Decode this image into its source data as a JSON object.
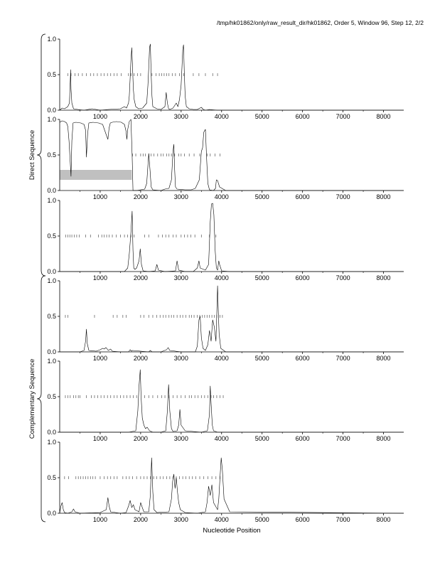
{
  "header": {
    "text": "/tmp/hk01862/only/raw_result_dir/hk01862, Order 5, Window 96, Step 12, 2/2"
  },
  "groups": {
    "direct": "Direct Sequence",
    "complementary": "Complementary Sequence"
  },
  "colors": {
    "line": "#000000",
    "marker": "#555555",
    "highlight": "#c0c0c0",
    "axis": "#000000"
  },
  "chart_data": [
    {
      "type": "line",
      "panel": 1,
      "group": "Direct Sequence",
      "xlim": [
        0,
        8500
      ],
      "ylim": [
        0,
        1
      ],
      "xticks": [
        "1000",
        "2000",
        "3000",
        "4000",
        "5000",
        "6000",
        "7000",
        "8000"
      ],
      "yticks": [
        "0.0",
        "0.5",
        "1.0"
      ],
      "x": [
        0,
        60,
        120,
        200,
        240,
        260,
        270,
        280,
        300,
        340,
        450,
        600,
        800,
        1000,
        1200,
        1500,
        1600,
        1650,
        1700,
        1720,
        1740,
        1760,
        1780,
        1800,
        1820,
        1840,
        1880,
        1950,
        2050,
        2150,
        2180,
        2200,
        2220,
        2240,
        2260,
        2280,
        2300,
        2400,
        2500,
        2600,
        2630,
        2660,
        2690,
        2720,
        2800,
        2880,
        2920,
        2960,
        3000,
        3020,
        3040,
        3060,
        3080,
        3100,
        3130,
        3200,
        3300,
        3400,
        3500,
        3550,
        3600,
        3700,
        3900,
        4200,
        8500
      ],
      "y": [
        0.0,
        0.03,
        0.02,
        0.05,
        0.1,
        0.4,
        0.57,
        0.3,
        0.1,
        0.02,
        0.01,
        0.0,
        0.02,
        0.0,
        0.01,
        0.02,
        0.05,
        0.03,
        0.1,
        0.2,
        0.45,
        0.7,
        0.88,
        0.6,
        0.3,
        0.15,
        0.05,
        0.02,
        0.03,
        0.1,
        0.35,
        0.6,
        0.88,
        0.93,
        0.5,
        0.2,
        0.05,
        0.02,
        0.01,
        0.05,
        0.25,
        0.1,
        0.02,
        0.01,
        0.03,
        0.1,
        0.05,
        0.15,
        0.35,
        0.6,
        0.85,
        0.92,
        0.5,
        0.2,
        0.05,
        0.02,
        0.01,
        0.01,
        0.04,
        0.01,
        0.0,
        0.01,
        0.0,
        0.0,
        0.0
      ],
      "markers": {
        "y": 0.5,
        "x": [
          200,
          280,
          380,
          460,
          560,
          660,
          760,
          840,
          930,
          1020,
          1100,
          1180,
          1260,
          1340,
          1420,
          1520,
          1700,
          1760,
          1840,
          1920,
          2000,
          2280,
          2380,
          2460,
          2520,
          2580,
          2640,
          2700,
          2780,
          2860,
          2960,
          3060,
          3300,
          3440,
          3600,
          3780,
          3900
        ]
      }
    },
    {
      "type": "line",
      "panel": 2,
      "group": "Direct Sequence",
      "xlim": [
        0,
        8500
      ],
      "ylim": [
        0,
        1
      ],
      "xticks": [
        "1000",
        "2000",
        "3000",
        "4000",
        "5000",
        "6000",
        "7000",
        "8000"
      ],
      "yticks": [
        "0.0",
        "0.5",
        "1.0"
      ],
      "highlight": {
        "x": [
          0,
          1780
        ],
        "y": [
          0.15,
          0.29
        ]
      },
      "x": [
        0,
        60,
        120,
        170,
        200,
        230,
        260,
        280,
        300,
        330,
        400,
        520,
        600,
        640,
        660,
        690,
        720,
        820,
        960,
        1060,
        1140,
        1190,
        1220,
        1250,
        1300,
        1400,
        1520,
        1600,
        1640,
        1660,
        1680,
        1720,
        1760,
        1790,
        1810,
        1900,
        2000,
        2100,
        2150,
        2180,
        2200,
        2230,
        2260,
        2300,
        2500,
        2600,
        2700,
        2760,
        2800,
        2820,
        2840,
        2860,
        2900,
        3100,
        3250,
        3350,
        3450,
        3500,
        3530,
        3560,
        3600,
        3630,
        3660,
        3700,
        3800,
        3850,
        3870,
        3900,
        3950,
        4100,
        8500
      ],
      "y": [
        0.96,
        0.98,
        0.97,
        0.95,
        0.9,
        0.7,
        0.4,
        0.2,
        0.7,
        0.95,
        0.96,
        0.95,
        0.93,
        0.85,
        0.47,
        0.8,
        0.95,
        0.96,
        0.95,
        0.93,
        0.8,
        0.72,
        0.88,
        0.95,
        0.96,
        0.97,
        0.96,
        0.93,
        0.83,
        0.72,
        0.86,
        0.97,
        1.0,
        0.5,
        0.0,
        0.0,
        0.01,
        0.02,
        0.1,
        0.35,
        0.52,
        0.3,
        0.05,
        0.01,
        0.0,
        0.02,
        0.03,
        0.15,
        0.55,
        0.65,
        0.3,
        0.05,
        0.02,
        0.01,
        0.01,
        0.03,
        0.15,
        0.55,
        0.6,
        0.82,
        0.86,
        0.45,
        0.1,
        0.01,
        0.0,
        0.03,
        0.15,
        0.14,
        0.05,
        0.0,
        0.0
      ],
      "markers": {
        "y": 0.5,
        "x": [
          1800,
          1880,
          2000,
          2060,
          2120,
          2200,
          2260,
          2330,
          2420,
          2500,
          2560,
          2640,
          2700,
          2760,
          2840,
          2940,
          3000,
          3080,
          3200,
          3320,
          3460,
          3640,
          3720,
          3840,
          3960
        ]
      }
    },
    {
      "type": "line",
      "panel": 3,
      "group": "Direct Sequence",
      "xlim": [
        0,
        8500
      ],
      "ylim": [
        0,
        1
      ],
      "xticks": [
        "1000",
        "2000",
        "3000",
        "4000",
        "5000",
        "6000",
        "7000",
        "8000"
      ],
      "yticks": [
        "0.0",
        "0.5",
        "1.0"
      ],
      "x": [
        0,
        1000,
        1600,
        1680,
        1720,
        1760,
        1790,
        1810,
        1830,
        1860,
        1900,
        1960,
        1990,
        2020,
        2060,
        2200,
        2360,
        2400,
        2440,
        2600,
        2860,
        2900,
        2940,
        3100,
        3300,
        3400,
        3440,
        3470,
        3600,
        3680,
        3720,
        3750,
        3780,
        3810,
        3840,
        3870,
        3900,
        3930,
        3950,
        4000,
        4200,
        8500
      ],
      "y": [
        0.0,
        0.0,
        0.0,
        0.05,
        0.25,
        0.55,
        0.85,
        0.3,
        0.05,
        0.03,
        0.05,
        0.15,
        0.32,
        0.1,
        0.01,
        0.0,
        0.01,
        0.1,
        0.02,
        0.0,
        0.01,
        0.15,
        0.02,
        0.0,
        0.0,
        0.05,
        0.15,
        0.05,
        0.02,
        0.1,
        0.7,
        0.95,
        0.96,
        0.8,
        0.3,
        0.05,
        0.02,
        0.15,
        0.1,
        0.01,
        0.0,
        0.0
      ],
      "markers": {
        "y": 0.5,
        "x": [
          150,
          200,
          250,
          300,
          360,
          420,
          480,
          640,
          760,
          960,
          1040,
          1100,
          1160,
          1220,
          1300,
          1400,
          1500,
          1600,
          1680,
          1760,
          1840,
          2100,
          2200,
          2440,
          2540,
          2620,
          2700,
          2800,
          2880,
          3000,
          3080,
          3160,
          3240,
          3340,
          3500,
          3700,
          3860
        ]
      }
    },
    {
      "type": "line",
      "panel": 4,
      "group": "Complementary Sequence",
      "xlim": [
        0,
        8500
      ],
      "ylim": [
        0,
        1
      ],
      "xticks": [
        "1000",
        "2000",
        "3000",
        "4000",
        "5000",
        "6000",
        "7000",
        "8000"
      ],
      "yticks": [
        "0.0",
        "0.5",
        "1.0"
      ],
      "x": [
        0,
        500,
        600,
        640,
        660,
        680,
        720,
        900,
        1000,
        1060,
        1100,
        1140,
        1160,
        1200,
        1260,
        1300,
        1500,
        1700,
        1740,
        1770,
        1800,
        2000,
        2200,
        2240,
        2280,
        2500,
        2640,
        2680,
        2720,
        3000,
        3350,
        3400,
        3440,
        3470,
        3500,
        3540,
        3600,
        3660,
        3700,
        3740,
        3780,
        3820,
        3860,
        3880,
        3900,
        3920,
        3940,
        3980,
        4100,
        8500
      ],
      "y": [
        0.0,
        0.0,
        0.02,
        0.15,
        0.32,
        0.12,
        0.02,
        0.01,
        0.03,
        0.05,
        0.04,
        0.06,
        0.05,
        0.02,
        0.04,
        0.01,
        0.0,
        0.0,
        0.03,
        0.01,
        0.02,
        0.01,
        0.0,
        0.02,
        0.0,
        0.0,
        0.03,
        0.06,
        0.02,
        0.0,
        0.0,
        0.08,
        0.45,
        0.5,
        0.2,
        0.05,
        0.02,
        0.1,
        0.3,
        0.15,
        0.45,
        0.35,
        0.15,
        0.5,
        0.93,
        0.55,
        0.25,
        0.05,
        0.0,
        0.0
      ],
      "markers": {
        "y": 0.5,
        "x": [
          140,
          200,
          860,
          1320,
          1420,
          1560,
          1640,
          2000,
          2080,
          2200,
          2300,
          2400,
          2480,
          2560,
          2620,
          2700,
          2760,
          2820,
          2900,
          2980,
          3040,
          3120,
          3200,
          3260,
          3320,
          3400,
          3460,
          3520,
          3580,
          3640,
          3700,
          3760,
          3820,
          3880,
          3960,
          4020
        ]
      }
    },
    {
      "type": "line",
      "panel": 5,
      "group": "Complementary Sequence",
      "xlim": [
        0,
        8500
      ],
      "ylim": [
        0,
        1
      ],
      "xticks": [
        "1000",
        "2000",
        "3000",
        "4000",
        "5000",
        "6000",
        "7000",
        "8000"
      ],
      "yticks": [
        "0.0",
        "0.5",
        "1.0"
      ],
      "x": [
        0,
        1000,
        1500,
        1700,
        1880,
        1930,
        1960,
        1990,
        2010,
        2040,
        2080,
        2120,
        2160,
        2220,
        2300,
        2500,
        2620,
        2660,
        2690,
        2720,
        2760,
        2800,
        2900,
        2940,
        2970,
        3000,
        3100,
        3300,
        3500,
        3650,
        3700,
        3720,
        3740,
        3770,
        3800,
        3900,
        4200,
        8500
      ],
      "y": [
        0.0,
        0.0,
        0.0,
        0.0,
        0.02,
        0.3,
        0.65,
        0.88,
        0.5,
        0.2,
        0.1,
        0.05,
        0.07,
        0.02,
        0.0,
        0.0,
        0.02,
        0.3,
        0.67,
        0.3,
        0.05,
        0.01,
        0.02,
        0.1,
        0.32,
        0.1,
        0.02,
        0.01,
        0.0,
        0.02,
        0.25,
        0.65,
        0.4,
        0.1,
        0.02,
        0.0,
        0.0,
        0.0
      ],
      "markers": {
        "y": 0.5,
        "x": [
          140,
          200,
          260,
          340,
          400,
          460,
          500,
          660,
          780,
          860,
          940,
          1020,
          1100,
          1180,
          1260,
          1340,
          1420,
          1500,
          1580,
          1660,
          1740,
          1820,
          1900,
          2100,
          2200,
          2300,
          2420,
          2520,
          2600,
          2700,
          2800,
          2900,
          3000,
          3100,
          3200,
          3260,
          3340,
          3420,
          3500,
          3580,
          3660,
          3740,
          3800,
          3880,
          3960,
          4040
        ]
      }
    },
    {
      "type": "line",
      "panel": 6,
      "group": "Complementary Sequence",
      "xlim": [
        0,
        8500
      ],
      "ylim": [
        0,
        1
      ],
      "xticks": [
        "1000",
        "2000",
        "3000",
        "4000",
        "5000",
        "6000",
        "7000",
        "8000"
      ],
      "yticks": [
        "0.0",
        "0.5",
        "1.0"
      ],
      "x": [
        0,
        30,
        60,
        90,
        120,
        200,
        300,
        340,
        380,
        500,
        1000,
        1150,
        1190,
        1220,
        1260,
        1500,
        1640,
        1700,
        1740,
        1780,
        1820,
        1860,
        1960,
        2000,
        2040,
        2080,
        2200,
        2240,
        2270,
        2300,
        2330,
        2400,
        2700,
        2760,
        2790,
        2820,
        2850,
        2880,
        2910,
        2940,
        2980,
        3100,
        3400,
        3600,
        3640,
        3680,
        3720,
        3760,
        3800,
        3900,
        3930,
        3960,
        3990,
        4020,
        4060,
        4200,
        8500
      ],
      "y": [
        0.0,
        0.1,
        0.15,
        0.05,
        0.01,
        0.0,
        0.02,
        0.06,
        0.02,
        0.0,
        0.01,
        0.05,
        0.22,
        0.1,
        0.02,
        0.0,
        0.01,
        0.1,
        0.18,
        0.08,
        0.12,
        0.05,
        0.02,
        0.15,
        0.08,
        0.02,
        0.02,
        0.25,
        0.78,
        0.3,
        0.05,
        0.01,
        0.02,
        0.2,
        0.45,
        0.55,
        0.35,
        0.5,
        0.3,
        0.15,
        0.05,
        0.01,
        0.0,
        0.02,
        0.15,
        0.38,
        0.25,
        0.4,
        0.15,
        0.05,
        0.2,
        0.5,
        0.78,
        0.6,
        0.2,
        0.02,
        0.0
      ],
      "markers": {
        "y": 0.5,
        "x": [
          120,
          220,
          400,
          460,
          520,
          580,
          640,
          700,
          760,
          820,
          880,
          1000,
          1100,
          1180,
          1260,
          1340,
          1420,
          1560,
          1640,
          1720,
          1800,
          1900,
          2000,
          2080,
          2160,
          2240,
          2320,
          2400,
          2480,
          2560,
          2640,
          2720,
          2800,
          2880,
          2960,
          3040,
          3120,
          3200,
          3280,
          3360,
          3460,
          3560,
          3660,
          3760,
          3860,
          3960
        ]
      }
    }
  ],
  "xlabel": "Nucleotide Position"
}
